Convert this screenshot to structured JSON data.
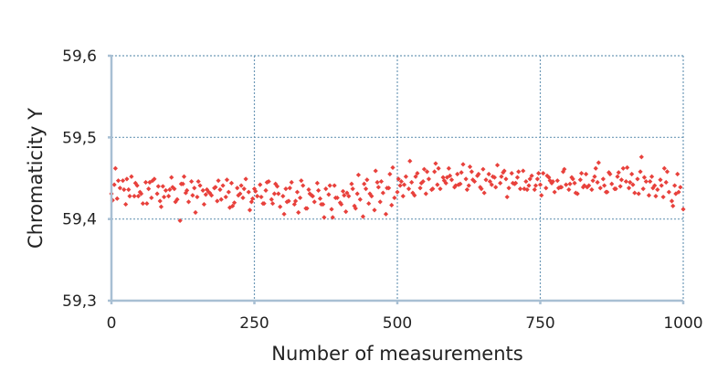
{
  "chart_data": {
    "type": "scatter",
    "title": "",
    "xlabel": "Number of measurements",
    "ylabel": "Chromaticity Y",
    "xlim": [
      0,
      1000
    ],
    "ylim": [
      59.3,
      59.6
    ],
    "x_ticks": [
      0,
      250,
      500,
      750,
      1000
    ],
    "x_tick_labels": [
      "0",
      "250",
      "500",
      "750",
      "1000"
    ],
    "y_ticks": [
      59.3,
      59.4,
      59.5,
      59.6
    ],
    "y_tick_labels": [
      "59,3",
      "59,4",
      "59,5",
      "59,6"
    ],
    "grid": true,
    "marker_color": "#e8413c",
    "marker": "diamond",
    "series": [
      {
        "x": [
          0,
          5,
          10,
          15,
          20,
          25,
          30,
          35,
          40,
          45,
          50,
          55,
          60,
          65,
          70,
          75,
          80,
          85,
          90,
          95,
          100,
          105,
          110,
          115,
          120,
          125,
          130,
          135,
          140,
          145,
          150,
          155,
          160,
          165,
          170,
          175,
          180,
          185,
          190,
          195,
          200,
          205,
          210,
          215,
          220,
          225,
          230,
          235,
          240,
          245,
          250,
          255,
          260,
          265,
          270,
          275,
          280,
          285,
          290,
          295,
          300,
          305,
          310,
          315,
          320,
          325,
          330,
          335,
          340,
          345,
          350,
          355,
          360,
          365,
          370,
          375,
          380,
          385,
          390,
          395,
          400,
          405,
          410,
          415,
          420,
          425,
          430,
          435,
          440,
          445,
          450,
          455,
          460,
          465,
          470,
          475,
          480,
          485,
          490,
          495,
          500,
          505,
          510,
          515,
          520,
          525,
          530,
          535,
          540,
          545,
          550,
          555,
          560,
          565,
          570,
          575,
          580,
          585,
          590,
          595,
          600,
          605,
          610,
          615,
          620,
          625,
          630,
          635,
          640,
          645,
          650,
          655,
          660,
          665,
          670,
          675,
          680,
          685,
          690,
          695,
          700,
          705,
          710,
          715,
          720,
          725,
          730,
          735,
          740,
          745,
          750,
          755,
          760,
          765,
          770,
          775,
          780,
          785,
          790,
          795,
          800,
          805,
          810,
          815,
          820,
          825,
          830,
          835,
          840,
          845,
          850,
          855,
          860,
          865,
          870,
          875,
          880,
          885,
          890,
          895,
          900,
          905,
          910,
          915,
          920,
          925,
          930,
          935,
          940,
          945,
          950,
          955,
          960,
          965,
          970,
          975,
          980,
          985,
          990,
          995,
          1000,
          2,
          12,
          22,
          32,
          42,
          52,
          62,
          72,
          82,
          92,
          102,
          112,
          122,
          132,
          142,
          152,
          162,
          172,
          182,
          192,
          202,
          212,
          222,
          232,
          242,
          252,
          262,
          272,
          282,
          292,
          302,
          312,
          322,
          332,
          342,
          352,
          362,
          372,
          382,
          392,
          402,
          412,
          422,
          432,
          442,
          452,
          462,
          472,
          482,
          492,
          502,
          512,
          522,
          532,
          542,
          552,
          562,
          572,
          582,
          592,
          602,
          612,
          622,
          632,
          642,
          652,
          662,
          672,
          682,
          692,
          702,
          712,
          722,
          732,
          742,
          752,
          762,
          772,
          782,
          792,
          802,
          812,
          822,
          832,
          842,
          852,
          862,
          872,
          882,
          892,
          902,
          912,
          922,
          932,
          942,
          952,
          962,
          972,
          982,
          992,
          7,
          27,
          47,
          67,
          87,
          107,
          127,
          147,
          167,
          187,
          207,
          227,
          247,
          267,
          287,
          307,
          327,
          347,
          367,
          387,
          407,
          427,
          447,
          467,
          487,
          507,
          527,
          547,
          567,
          587,
          607,
          627,
          647,
          667,
          687,
          707,
          727,
          747,
          767,
          787,
          807,
          827,
          847,
          867,
          887,
          907,
          927,
          947,
          967,
          987
        ],
        "y": [
          59.431,
          59.442,
          59.425,
          59.438,
          59.447,
          59.418,
          59.436,
          59.452,
          59.428,
          59.441,
          59.433,
          59.419,
          59.445,
          59.437,
          59.426,
          59.449,
          59.431,
          59.422,
          59.44,
          59.435,
          59.428,
          59.451,
          59.437,
          59.424,
          59.398,
          59.443,
          59.432,
          59.421,
          59.446,
          59.438,
          59.427,
          59.441,
          59.435,
          59.43,
          59.433,
          59.429,
          59.438,
          59.422,
          59.436,
          59.441,
          59.427,
          59.433,
          59.444,
          59.42,
          59.438,
          59.431,
          59.426,
          59.449,
          59.433,
          59.421,
          59.437,
          59.428,
          59.442,
          59.419,
          59.435,
          59.446,
          59.424,
          59.431,
          59.44,
          59.415,
          59.428,
          59.437,
          59.422,
          59.445,
          59.418,
          59.433,
          59.426,
          59.441,
          59.413,
          59.436,
          59.429,
          59.421,
          59.444,
          59.425,
          59.418,
          59.437,
          59.43,
          59.412,
          59.441,
          59.426,
          59.42,
          59.434,
          59.409,
          59.428,
          59.443,
          59.416,
          59.431,
          59.424,
          59.403,
          59.437,
          59.419,
          59.428,
          59.411,
          59.445,
          59.421,
          59.432,
          59.406,
          59.438,
          59.417,
          59.426,
          59.433,
          59.441,
          59.428,
          59.452,
          59.437,
          59.445,
          59.429,
          59.456,
          59.438,
          59.446,
          59.431,
          59.449,
          59.436,
          59.458,
          59.442,
          59.437,
          59.451,
          59.444,
          59.462,
          59.448,
          59.439,
          59.455,
          59.443,
          59.467,
          59.449,
          59.441,
          59.458,
          59.446,
          59.453,
          59.439,
          59.461,
          59.448,
          59.455,
          59.442,
          59.451,
          59.466,
          59.444,
          59.457,
          59.449,
          59.438,
          59.456,
          59.443,
          59.451,
          59.437,
          59.459,
          59.446,
          59.441,
          59.453,
          59.436,
          59.449,
          59.442,
          59.456,
          59.438,
          59.451,
          59.444,
          59.433,
          59.447,
          59.439,
          59.458,
          59.442,
          59.436,
          59.451,
          59.444,
          59.431,
          59.448,
          59.439,
          59.455,
          59.441,
          59.436,
          59.452,
          59.445,
          59.438,
          59.449,
          59.433,
          59.457,
          59.443,
          59.437,
          59.452,
          59.44,
          59.462,
          59.446,
          59.438,
          59.455,
          59.432,
          59.449,
          59.458,
          59.437,
          59.446,
          59.429,
          59.452,
          59.441,
          59.436,
          59.448,
          59.427,
          59.445,
          59.433,
          59.422,
          59.441,
          59.455,
          59.439,
          59.412,
          59.423,
          59.447,
          59.436,
          59.428,
          59.444,
          59.431,
          59.419,
          59.447,
          59.44,
          59.427,
          59.436,
          59.421,
          59.443,
          59.435,
          59.429,
          59.446,
          59.418,
          59.432,
          59.439,
          59.424,
          59.448,
          59.416,
          59.429,
          59.437,
          59.411,
          59.434,
          59.427,
          59.445,
          59.419,
          59.431,
          59.406,
          59.438,
          59.422,
          59.447,
          59.413,
          59.428,
          59.435,
          59.402,
          59.441,
          59.426,
          59.418,
          59.432,
          59.437,
          59.454,
          59.443,
          59.431,
          59.459,
          59.446,
          59.438,
          59.463,
          59.449,
          59.442,
          59.471,
          59.452,
          59.444,
          59.458,
          59.437,
          59.462,
          59.447,
          59.453,
          59.441,
          59.457,
          59.436,
          59.448,
          59.455,
          59.432,
          59.446,
          59.439,
          59.452,
          59.427,
          59.444,
          59.458,
          59.437,
          59.449,
          59.441,
          59.429,
          59.453,
          59.446,
          59.438,
          59.461,
          59.443,
          59.432,
          59.456,
          59.439,
          59.447,
          59.469,
          59.441,
          59.455,
          59.437,
          59.448,
          59.463,
          59.442,
          59.431,
          59.451,
          59.446,
          59.428,
          59.441,
          59.458,
          59.416,
          59.433,
          59.462,
          59.449,
          59.428,
          59.445,
          59.415,
          59.439,
          59.452,
          59.408,
          59.436,
          59.447,
          59.414,
          59.441,
          59.425,
          59.419,
          59.443,
          59.421,
          59.408,
          59.431,
          59.418,
          59.402,
          59.429,
          59.413,
          59.448,
          59.439,
          59.455,
          59.446,
          59.432,
          59.461,
          59.468,
          59.451,
          59.442,
          59.464,
          59.437,
          59.452,
          59.459,
          59.444,
          59.436,
          59.456,
          59.447,
          59.439,
          59.449,
          59.441,
          59.462,
          59.433,
          59.457,
          59.445,
          59.476,
          59.438,
          59.462,
          59.431
        ]
      }
    ]
  }
}
